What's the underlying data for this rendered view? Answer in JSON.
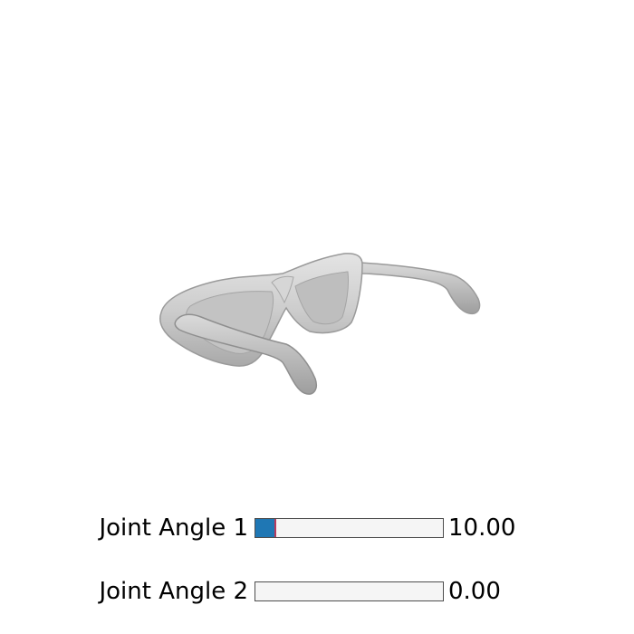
{
  "scene": {
    "object_icon": "sunglasses-mesh",
    "mesh_color": "#c8c8c8",
    "lens_color": "#bdbdbd",
    "outline_color": "#9a9a9a",
    "background_color": "#ffffff"
  },
  "sliders": [
    {
      "label": "Joint Angle 1",
      "value_text": "10.00",
      "fraction": 0.105,
      "fill_color": "#1f77b4",
      "handle_color": "#b83a5e"
    },
    {
      "label": "Joint Angle 2",
      "value_text": "0.00",
      "fraction": 0.0,
      "fill_color": "#1f77b4",
      "handle_color": "#b83a5e"
    }
  ]
}
